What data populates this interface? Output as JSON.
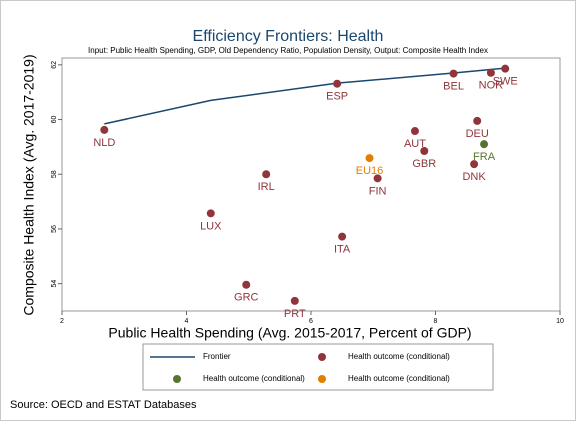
{
  "chart_data": {
    "type": "scatter",
    "title": "Efficiency Frontiers: Health",
    "subtitle": "Input: Public Health Spending, GDP, Old Dependency Ratio, Population Density, Output: Composite Health Index",
    "x_label": "Public Health Spending (Avg. 2015-2017, Percent of GDP)",
    "y_label": "Composite Health Index (Avg. 2017-2019)",
    "xlim": [
      2,
      10
    ],
    "xticks": [
      2,
      4,
      6,
      8,
      10
    ],
    "ylim": [
      53,
      62.25
    ],
    "yticks": [
      54,
      56,
      58,
      60,
      62
    ],
    "series": [
      {
        "name": "Frontier",
        "type": "line",
        "color": "#1a476f",
        "x": [
          2.68,
          4.39,
          6.42,
          8.29,
          9.12
        ],
        "y": [
          59.84,
          60.7,
          61.33,
          61.7,
          61.88
        ]
      },
      {
        "name": "Health outcome (conditional)",
        "type": "scatter",
        "color": "#90353b",
        "x": [
          2.68,
          6.42,
          8.29,
          8.89,
          9.12,
          7.67,
          8.67,
          7.82,
          8.62,
          7.07,
          5.28,
          4.39,
          6.5,
          4.96,
          5.74
        ],
        "y": [
          59.62,
          61.31,
          61.68,
          61.71,
          61.86,
          59.58,
          59.95,
          58.85,
          58.37,
          57.85,
          58.0,
          56.57,
          55.72,
          53.96,
          53.37
        ],
        "labels": [
          "NLD",
          "ESP",
          "BEL",
          "NOR",
          "SWE",
          "AUT",
          "DEU",
          "GBR",
          "DNK",
          "FIN",
          "IRL",
          "LUX",
          "ITA",
          "GRC",
          "PRT"
        ]
      },
      {
        "name": "Health outcome (conditional)",
        "type": "scatter",
        "color": "#55752f",
        "x": [
          8.78
        ],
        "y": [
          59.1
        ],
        "labels": [
          "FRA"
        ]
      },
      {
        "name": "Health outcome (conditional)",
        "type": "scatter",
        "color": "#e37e00",
        "x": [
          6.94
        ],
        "y": [
          58.59
        ],
        "labels": [
          "EU16"
        ]
      }
    ],
    "source": "Source: OECD and ESTAT Databases"
  }
}
